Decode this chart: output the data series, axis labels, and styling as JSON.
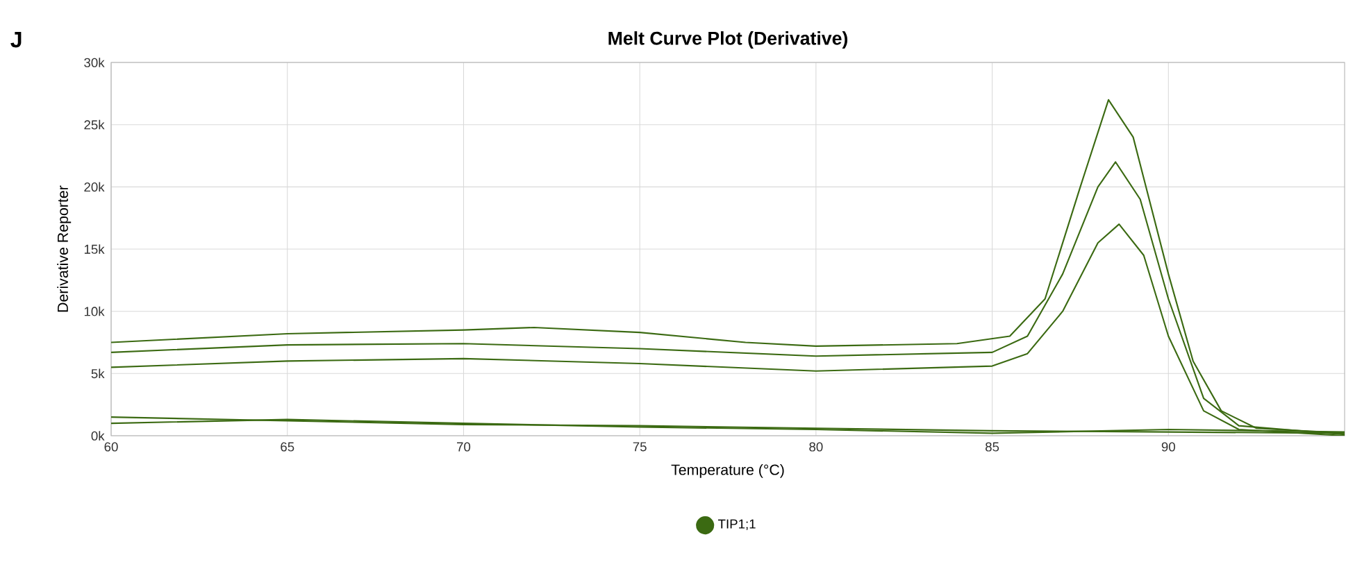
{
  "chart_data": {
    "type": "line",
    "title": "Melt Curve Plot (Derivative)",
    "xlabel": "Temperature (°C)",
    "ylabel": "Derivative Reporter",
    "annotations": [
      "J"
    ],
    "xlim": [
      60,
      95
    ],
    "xticks": [
      60,
      65,
      70,
      75,
      80,
      85,
      90
    ],
    "ylim": [
      0,
      30000
    ],
    "yticks": [
      {
        "value": 0,
        "label": "0k"
      },
      {
        "value": 5000,
        "label": "5k"
      },
      {
        "value": 10000,
        "label": "10k"
      },
      {
        "value": 15000,
        "label": "15k"
      },
      {
        "value": 20000,
        "label": "20k"
      },
      {
        "value": 25000,
        "label": "25k"
      },
      {
        "value": 30000,
        "label": "30k"
      }
    ],
    "grid": true,
    "legend": "bottom",
    "line_style": "solid",
    "series": [
      {
        "name": "TIP1;1",
        "color": "#3b6a12",
        "x": [
          60,
          65,
          70,
          72,
          75,
          78,
          80,
          84,
          85.5,
          86.5,
          87.5,
          88.3,
          89,
          90,
          90.7,
          91.5,
          92.5,
          95
        ],
        "values": [
          7500,
          8200,
          8500,
          8700,
          8300,
          7500,
          7200,
          7400,
          8000,
          11000,
          20000,
          27000,
          24000,
          13000,
          6000,
          2000,
          600,
          200
        ]
      },
      {
        "color": "#3b6a12",
        "x": [
          60,
          65,
          70,
          75,
          80,
          85,
          86,
          87,
          88,
          88.5,
          89.2,
          90,
          91,
          92,
          95
        ],
        "values": [
          6700,
          7300,
          7400,
          7000,
          6400,
          6700,
          8000,
          13000,
          20000,
          22000,
          19000,
          11000,
          3000,
          800,
          100
        ]
      },
      {
        "color": "#3b6a12",
        "x": [
          60,
          65,
          70,
          75,
          80,
          85,
          86,
          87,
          88,
          88.6,
          89.3,
          90,
          91,
          92,
          95
        ],
        "values": [
          5500,
          6000,
          6200,
          5800,
          5200,
          5600,
          6600,
          10000,
          15500,
          17000,
          14500,
          8000,
          2000,
          500,
          0
        ]
      },
      {
        "color": "#3b6a12",
        "x": [
          60,
          65,
          70,
          75,
          80,
          85,
          90,
          95
        ],
        "values": [
          1500,
          1200,
          900,
          800,
          600,
          400,
          300,
          200
        ]
      },
      {
        "color": "#3b6a12",
        "x": [
          60,
          65,
          70,
          75,
          80,
          85,
          90,
          95
        ],
        "values": [
          1000,
          1300,
          1000,
          700,
          500,
          200,
          500,
          300
        ]
      }
    ]
  }
}
